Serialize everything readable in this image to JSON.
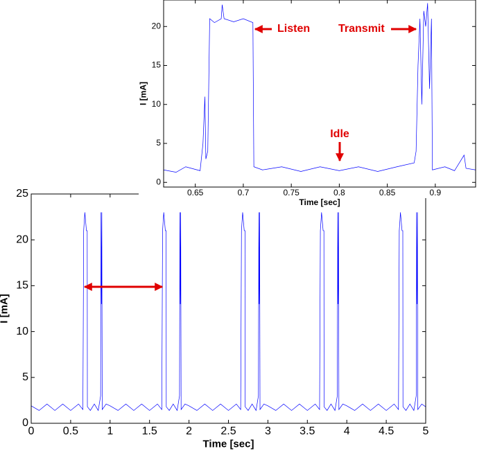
{
  "chart_data": [
    {
      "type": "line",
      "xlabel": "Time [sec]",
      "ylabel": "I [mA]",
      "xlim": [
        0,
        5
      ],
      "ylim": [
        0,
        25
      ],
      "xticks": [
        0,
        0.5,
        1,
        1.5,
        2,
        2.5,
        3,
        3.5,
        4,
        4.5,
        5
      ],
      "yticks": [
        0,
        5,
        10,
        15,
        20,
        25
      ],
      "series": [
        {
          "color": "#0000ff",
          "x": [
            0,
            0.1,
            0.2,
            0.3,
            0.4,
            0.5,
            0.6,
            0.655,
            0.66,
            0.665,
            0.68,
            0.7,
            0.71,
            0.712,
            0.75,
            0.8,
            0.85,
            0.88,
            0.885,
            0.89,
            0.895,
            0.9,
            0.95,
            1,
            1.1,
            1.2,
            1.3,
            1.4,
            1.5,
            1.6,
            1.655,
            1.66,
            1.665,
            1.68,
            1.7,
            1.71,
            1.712,
            1.75,
            1.8,
            1.85,
            1.88,
            1.885,
            1.89,
            1.895,
            1.9,
            1.95,
            2,
            2.1,
            2.2,
            2.3,
            2.4,
            2.5,
            2.6,
            2.655,
            2.66,
            2.665,
            2.68,
            2.7,
            2.71,
            2.712,
            2.75,
            2.8,
            2.85,
            2.88,
            2.885,
            2.89,
            2.895,
            2.9,
            2.95,
            3,
            3.1,
            3.2,
            3.3,
            3.4,
            3.5,
            3.6,
            3.655,
            3.66,
            3.665,
            3.68,
            3.7,
            3.71,
            3.712,
            3.75,
            3.8,
            3.85,
            3.88,
            3.885,
            3.89,
            3.895,
            3.9,
            3.95,
            4,
            4.1,
            4.2,
            4.3,
            4.4,
            4.5,
            4.6,
            4.655,
            4.66,
            4.665,
            4.68,
            4.7,
            4.71,
            4.712,
            4.75,
            4.8,
            4.85,
            4.88,
            4.885,
            4.89,
            4.895,
            4.9,
            4.95,
            5
          ],
          "values": [
            1.9,
            1.4,
            2.1,
            1.4,
            2.1,
            1.4,
            2.1,
            1.5,
            11,
            21,
            23,
            21,
            21,
            1.8,
            1.4,
            2.1,
            1.4,
            3,
            23,
            13,
            23,
            1.5,
            2.1,
            1.9,
            1.4,
            2.1,
            1.4,
            2.1,
            1.4,
            2.1,
            1.5,
            11,
            21,
            23,
            21,
            21,
            1.8,
            1.4,
            2.1,
            1.4,
            3,
            23,
            13,
            23,
            1.5,
            2.1,
            1.9,
            1.4,
            2.1,
            1.4,
            2.1,
            1.4,
            2.1,
            1.5,
            11,
            21,
            23,
            21,
            21,
            1.8,
            1.4,
            2.1,
            1.4,
            3,
            23,
            13,
            23,
            1.5,
            2.1,
            1.9,
            1.4,
            2.1,
            1.4,
            2.1,
            1.4,
            2.1,
            1.5,
            11,
            21,
            23,
            21,
            21,
            1.8,
            1.4,
            2.1,
            1.4,
            3,
            23,
            13,
            23,
            1.5,
            2.1,
            1.9,
            1.4,
            2.1,
            1.4,
            2.1,
            1.4,
            2.1,
            1.5,
            11,
            21,
            23,
            21,
            21,
            1.8,
            1.4,
            2.1,
            1.4,
            3,
            23,
            13,
            23,
            1.5,
            2.1,
            1.8
          ]
        }
      ]
    },
    {
      "type": "line",
      "xlabel": "Time [sec]",
      "ylabel": "I [mA]",
      "xlim": [
        0.617,
        0.942
      ],
      "ylim": [
        -0.6,
        23.4
      ],
      "xticks": [
        0.65,
        0.7,
        0.75,
        0.8,
        0.85,
        0.9
      ],
      "yticks": [
        0,
        5,
        10,
        15,
        20
      ],
      "annotations": [
        "Listen",
        "Transmit",
        "Idle"
      ],
      "series": [
        {
          "color": "#0000ff",
          "x": [
            0.617,
            0.63,
            0.64,
            0.655,
            0.658,
            0.66,
            0.661,
            0.663,
            0.665,
            0.67,
            0.677,
            0.678,
            0.68,
            0.69,
            0.7,
            0.71,
            0.711,
            0.72,
            0.74,
            0.76,
            0.78,
            0.8,
            0.82,
            0.84,
            0.86,
            0.878,
            0.88,
            0.882,
            0.884,
            0.886,
            0.888,
            0.89,
            0.892,
            0.894,
            0.896,
            0.897,
            0.91,
            0.92,
            0.93,
            0.932,
            0.942
          ],
          "values": [
            1.6,
            1.3,
            2.0,
            1.5,
            5,
            11,
            3,
            4,
            21,
            20.5,
            21,
            22.8,
            21,
            20.6,
            21,
            20.5,
            2,
            1.6,
            2.0,
            1.4,
            2.0,
            1.5,
            2.0,
            1.4,
            2.0,
            2.5,
            4,
            15,
            21,
            10,
            22,
            20,
            23,
            12,
            21,
            1.6,
            2.0,
            1.5,
            3.5,
            1.8,
            1.6
          ]
        }
      ]
    }
  ]
}
